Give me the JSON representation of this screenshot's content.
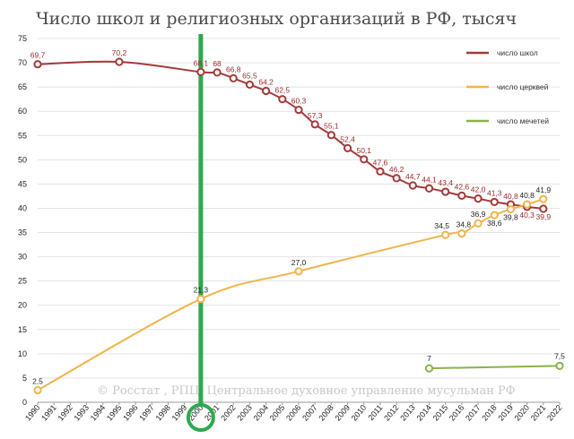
{
  "chart_data": {
    "type": "line",
    "title": "Число школ и религиозных организаций в РФ, тысяч",
    "source": "© Росстат , РПЦ, Центральное духовное управление мусульман РФ",
    "ylim": [
      0,
      75
    ],
    "yticks": [
      0,
      5,
      10,
      15,
      20,
      25,
      30,
      35,
      40,
      45,
      50,
      55,
      60,
      65,
      70,
      75
    ],
    "xticks": [
      "1990",
      "1991",
      "1992",
      "1993",
      "1994",
      "1995",
      "1996",
      "1997",
      "1998",
      "1999",
      "2000",
      "2001",
      "2002",
      "2003",
      "2004",
      "2005",
      "2006",
      "2007",
      "2008",
      "2009",
      "2010",
      "2011",
      "2012",
      "2013",
      "2014",
      "2015",
      "2016",
      "2017",
      "2018",
      "2019",
      "2020",
      "2021",
      "2022"
    ],
    "grid": true,
    "legend_position": "top-right",
    "highlight": {
      "x": "2000",
      "color": "#2fa84f"
    },
    "series": [
      {
        "name": "число школ",
        "color": "#a33a3a",
        "label_color": "#9b2a2a",
        "points": [
          {
            "x": 1990,
            "y": 69.7,
            "label": "69,7"
          },
          {
            "x": 1995,
            "y": 70.2,
            "label": "70,2"
          },
          {
            "x": 2000,
            "y": 68.1,
            "label": "68,1"
          },
          {
            "x": 2001,
            "y": 68.0,
            "label": "68"
          },
          {
            "x": 2002,
            "y": 66.8,
            "label": "66,8"
          },
          {
            "x": 2003,
            "y": 65.5,
            "label": "65,5"
          },
          {
            "x": 2004,
            "y": 64.2,
            "label": "64,2"
          },
          {
            "x": 2005,
            "y": 62.5,
            "label": "62,5"
          },
          {
            "x": 2006,
            "y": 60.3,
            "label": "60,3"
          },
          {
            "x": 2007,
            "y": 57.3,
            "label": "57,3"
          },
          {
            "x": 2008,
            "y": 55.1,
            "label": "55,1"
          },
          {
            "x": 2009,
            "y": 52.4,
            "label": "52,4"
          },
          {
            "x": 2010,
            "y": 50.1,
            "label": "50,1"
          },
          {
            "x": 2011,
            "y": 47.6,
            "label": "47,6"
          },
          {
            "x": 2012,
            "y": 46.2,
            "label": "46,2"
          },
          {
            "x": 2013,
            "y": 44.7,
            "label": "44,7"
          },
          {
            "x": 2014,
            "y": 44.1,
            "label": "44,1"
          },
          {
            "x": 2015,
            "y": 43.4,
            "label": "43,4"
          },
          {
            "x": 2016,
            "y": 42.6,
            "label": "42,6"
          },
          {
            "x": 2017,
            "y": 42.0,
            "label": "42,0"
          },
          {
            "x": 2018,
            "y": 41.3,
            "label": "41,3"
          },
          {
            "x": 2019,
            "y": 40.8,
            "label": "40,8"
          },
          {
            "x": 2020,
            "y": 40.3,
            "label": "40,3"
          },
          {
            "x": 2021,
            "y": 39.9,
            "label": "39,9"
          }
        ]
      },
      {
        "name": "число церквей",
        "color": "#f0b44a",
        "label_color": "#222222",
        "points": [
          {
            "x": 1990,
            "y": 2.5,
            "label": "2,5"
          },
          {
            "x": 2000,
            "y": 21.3,
            "label": "21,3"
          },
          {
            "x": 2006,
            "y": 27.0,
            "label": "27,0"
          },
          {
            "x": 2015,
            "y": 34.5,
            "label": "34,5"
          },
          {
            "x": 2016,
            "y": 34.8,
            "label": "34,8"
          },
          {
            "x": 2017,
            "y": 36.9,
            "label": "36,9"
          },
          {
            "x": 2018,
            "y": 38.6,
            "label": "38,6"
          },
          {
            "x": 2019,
            "y": 39.8,
            "label": "39,8"
          },
          {
            "x": 2020,
            "y": 40.8,
            "label": "40,8"
          },
          {
            "x": 2021,
            "y": 41.9,
            "label": "41,9"
          }
        ]
      },
      {
        "name": "число мечетей",
        "color": "#8bb24a",
        "label_color": "#222222",
        "points": [
          {
            "x": 2014,
            "y": 7.0,
            "label": "7"
          },
          {
            "x": 2022,
            "y": 7.5,
            "label": "7,5"
          }
        ]
      }
    ]
  }
}
